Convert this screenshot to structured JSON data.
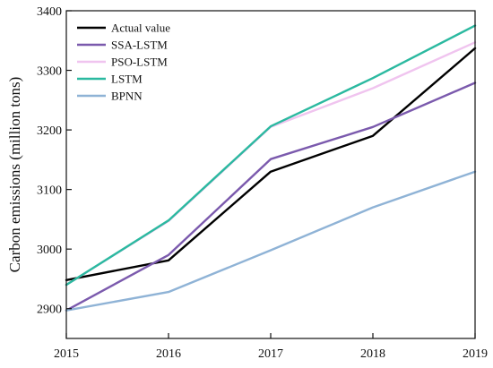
{
  "chart_data": {
    "type": "line",
    "title": "",
    "xlabel": "",
    "ylabel": "Carbon emissions (million tons)",
    "x": [
      2015,
      2016,
      2017,
      2018,
      2019
    ],
    "xlim": [
      2015,
      2019
    ],
    "ylim": [
      2850,
      3400
    ],
    "yticks": [
      2900,
      3000,
      3100,
      3200,
      3300,
      3400
    ],
    "grid": false,
    "legend": "top-left",
    "series": [
      {
        "name": "Actual value",
        "color": "#000000",
        "values": [
          2948,
          2981,
          3130,
          3190,
          3337
        ]
      },
      {
        "name": "SSA-LSTM",
        "color": "#7b5aad",
        "values": [
          2897,
          2990,
          3151,
          3205,
          3279
        ]
      },
      {
        "name": "PSO-LSTM",
        "color": "#f0c4ef",
        "values": [
          2940,
          3047,
          3205,
          3270,
          3347
        ]
      },
      {
        "name": "LSTM",
        "color": "#2bb9a0",
        "values": [
          2940,
          3048,
          3206,
          3287,
          3375
        ]
      },
      {
        "name": "BPNN",
        "color": "#8fb3d6",
        "values": [
          2897,
          2928,
          2998,
          3070,
          3130
        ]
      }
    ]
  }
}
